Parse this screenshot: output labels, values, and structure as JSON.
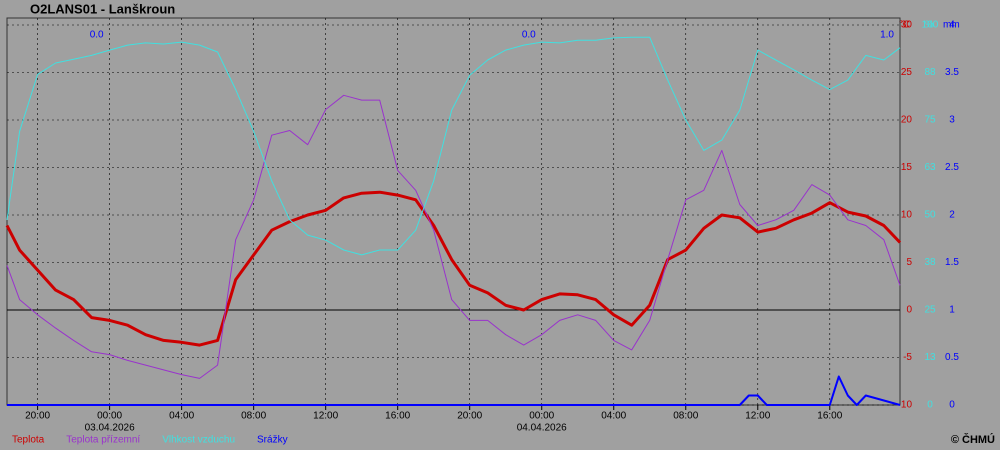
{
  "chart_data": {
    "type": "line",
    "title": "O2LANS01 - Lanškroun",
    "ylabel": "°C",
    "y2label": "%",
    "y3label": "mm",
    "xlim": [
      -5.7,
      43.9
    ],
    "xticks": [
      {
        "value": -4,
        "label": "20:00"
      },
      {
        "value": 0,
        "label": "00:00"
      },
      {
        "value": 4,
        "label": "04:00"
      },
      {
        "value": 8,
        "label": "08:00"
      },
      {
        "value": 12,
        "label": "12:00"
      },
      {
        "value": 16,
        "label": "16:00"
      },
      {
        "value": 20,
        "label": "20:00"
      },
      {
        "value": 24,
        "label": "00:00"
      },
      {
        "value": 28,
        "label": "04:00"
      },
      {
        "value": 32,
        "label": "08:00"
      },
      {
        "value": 36,
        "label": "12:00"
      },
      {
        "value": 40,
        "label": "16:00"
      }
    ],
    "date_labels": [
      {
        "value": 0,
        "label": "03.04.2026"
      },
      {
        "value": 24,
        "label": "04.04.2026"
      }
    ],
    "day_totals": [
      {
        "x": 0,
        "value": 0,
        "label": "0.0"
      },
      {
        "x": 24,
        "value": 0,
        "label": "0.0"
      },
      {
        "x": 43.9,
        "value": 1,
        "label": "1.0"
      }
    ],
    "ylim": [
      -10,
      30
    ],
    "yticks": [
      -10,
      -5,
      0,
      5,
      10,
      15,
      20,
      25,
      30
    ],
    "y2lim": [
      0,
      100
    ],
    "y2ticks": [
      0,
      {
        "value": 12.5,
        "label": "13"
      },
      25,
      {
        "value": 37.5,
        "label": "38"
      },
      50,
      {
        "value": 62.5,
        "label": "63"
      },
      75,
      {
        "value": 87.5,
        "label": "88"
      },
      100
    ],
    "y3lim": [
      0,
      4
    ],
    "y3ticks": [
      0,
      0.5,
      1,
      1.5,
      2,
      2.5,
      3,
      3.5,
      4
    ],
    "zero_line": 0,
    "grid": true,
    "x": [
      -5.7,
      -5,
      -4,
      -3,
      -2,
      -1,
      0,
      1,
      2,
      3,
      4,
      5,
      6,
      7,
      8,
      9,
      10,
      11,
      12,
      13,
      14,
      15,
      16,
      17,
      18,
      19,
      20,
      21,
      22,
      23,
      24,
      25,
      26,
      27,
      28,
      29,
      30,
      31,
      32,
      33,
      34,
      35,
      36,
      37,
      38,
      39,
      40,
      41,
      42,
      43,
      43.9
    ],
    "series": [
      {
        "name": "Teplota",
        "color": "#cc0000",
        "axis": "y",
        "width": 3,
        "values": [
          8.9,
          6.3,
          4.2,
          2.1,
          1.1,
          -0.8,
          -1.1,
          -1.6,
          -2.6,
          -3.2,
          -3.4,
          -3.7,
          -3.2,
          3.2,
          5.8,
          8.4,
          9.3,
          10,
          10.5,
          11.8,
          12.3,
          12.4,
          12.1,
          11.6,
          8.9,
          5.3,
          2.6,
          1.8,
          0.5,
          0,
          1.1,
          1.7,
          1.6,
          1.1,
          -0.5,
          -1.6,
          0.5,
          5.3,
          6.3,
          8.6,
          10,
          9.7,
          8.2,
          8.6,
          9.5,
          10.2,
          11.3,
          10.3,
          9.9,
          8.9,
          7.1
        ]
      },
      {
        "name": "Teplota přízemní",
        "color": "#9933cc",
        "axis": "y",
        "width": 1,
        "values": [
          4.7,
          1.1,
          -0.5,
          -1.9,
          -3.2,
          -4.4,
          -4.7,
          -5.3,
          -5.8,
          -6.3,
          -6.8,
          -7.2,
          -5.8,
          7.4,
          11.6,
          18.4,
          18.9,
          17.4,
          21.1,
          22.6,
          22.1,
          22.1,
          14.7,
          12.6,
          8.4,
          1.1,
          -1.1,
          -1.1,
          -2.6,
          -3.7,
          -2.6,
          -1.1,
          -0.5,
          -1.1,
          -3.2,
          -4.2,
          -1.1,
          5.3,
          11.6,
          12.6,
          16.8,
          11.1,
          8.9,
          9.5,
          10.5,
          13.2,
          12.1,
          9.5,
          8.9,
          7.4,
          2.6
        ]
      },
      {
        "name": "Vlhkost vzduchu",
        "color": "#40e0e0",
        "axis": "y2",
        "width": 1,
        "values": [
          48.7,
          72,
          87,
          90,
          91,
          92,
          93.4,
          94.7,
          95.3,
          95,
          95.5,
          94.7,
          92.9,
          83,
          72,
          59,
          48.7,
          44.7,
          43.4,
          40.8,
          39.5,
          40.8,
          40.8,
          46,
          59,
          77.6,
          86.8,
          90.8,
          93.4,
          94.7,
          95.5,
          95.3,
          96,
          96,
          96.6,
          96.8,
          96.8,
          85.5,
          75,
          67,
          69.7,
          77.6,
          93.4,
          90.8,
          88.2,
          85.5,
          83,
          85.5,
          92,
          90.8,
          94
        ]
      },
      {
        "name": "Srážky",
        "color": "#0000ff",
        "axis": "y3",
        "width": 2,
        "x": [
          -5.7,
          35,
          35.5,
          36,
          36.5,
          37,
          40,
          40.5,
          41,
          41.5,
          42,
          43.9
        ],
        "values": [
          0,
          0,
          0.1,
          0.1,
          0,
          0,
          0,
          0.3,
          0.1,
          0,
          0.1,
          0
        ]
      }
    ],
    "copyright": "© ČHMÚ"
  }
}
